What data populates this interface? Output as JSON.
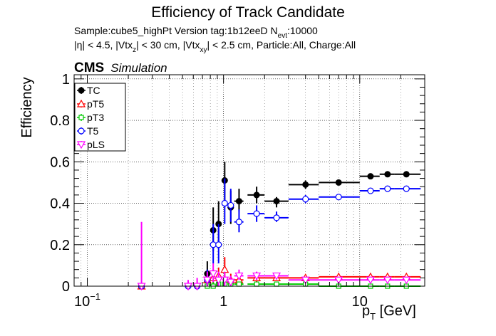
{
  "chart_data": {
    "type": "scatter",
    "title": "Efficiency of Track Candidate",
    "subtitle_line1_parts": [
      "Sample:cube5_highPt   Version tag:1b12eeD  N",
      "evt",
      ":10000"
    ],
    "subtitle_line2_parts": [
      "|η| < 4.5, |Vtx",
      "z",
      "| < 30 cm, |Vtx",
      "xy",
      "| < 2.5 cm, Particle:All, Charge:All"
    ],
    "cms_label": "CMS",
    "cms_sub_label": "Simulation",
    "ylabel": "Efficiency",
    "xlabel_main": "p",
    "xlabel_sub": "T",
    "xlabel_unit": " [GeV]",
    "xscale": "log",
    "xlim": [
      0.08,
      30
    ],
    "ylim": [
      0,
      1.02
    ],
    "grid": true,
    "legend_position": "top-left",
    "x_ticks": [
      {
        "value": 0.1,
        "base": "10",
        "exp": "−1"
      },
      {
        "value": 1,
        "base": "1",
        "exp": ""
      },
      {
        "value": 10,
        "base": "10",
        "exp": ""
      }
    ],
    "y_ticks": [
      {
        "value": 0,
        "label": "0"
      },
      {
        "value": 0.2,
        "label": "0.2"
      },
      {
        "value": 0.4,
        "label": "0.4"
      },
      {
        "value": 0.6,
        "label": "0.6"
      },
      {
        "value": 0.8,
        "label": "0.8"
      },
      {
        "value": 1,
        "label": "1"
      }
    ],
    "series": [
      {
        "name": "TC",
        "color": "#000000",
        "marker": "filled-circle",
        "points": [
          {
            "x": 0.25,
            "xlo": 0.25,
            "xhi": 0.25,
            "y": 0.0,
            "ylo": 0.0,
            "yhi": 0.0
          },
          {
            "x": 0.55,
            "xlo": 0.55,
            "xhi": 0.55,
            "y": 0.0,
            "ylo": 0.0,
            "yhi": 0.0
          },
          {
            "x": 0.64,
            "xlo": 0.64,
            "xhi": 0.64,
            "y": 0.0,
            "ylo": 0.0,
            "yhi": 0.0
          },
          {
            "x": 0.76,
            "xlo": 0.73,
            "xhi": 0.79,
            "y": 0.06,
            "ylo": 0.02,
            "yhi": 0.12
          },
          {
            "x": 0.84,
            "xlo": 0.81,
            "xhi": 0.87,
            "y": 0.27,
            "ylo": 0.17,
            "yhi": 0.38
          },
          {
            "x": 0.92,
            "xlo": 0.89,
            "xhi": 0.95,
            "y": 0.3,
            "ylo": 0.2,
            "yhi": 0.41
          },
          {
            "x": 1.02,
            "xlo": 0.98,
            "xhi": 1.06,
            "y": 0.51,
            "ylo": 0.41,
            "yhi": 0.6
          },
          {
            "x": 1.13,
            "xlo": 1.07,
            "xhi": 1.19,
            "y": 0.38,
            "ylo": 0.3,
            "yhi": 0.46
          },
          {
            "x": 1.3,
            "xlo": 1.2,
            "xhi": 1.4,
            "y": 0.41,
            "ylo": 0.36,
            "yhi": 0.47
          },
          {
            "x": 1.75,
            "xlo": 1.5,
            "xhi": 2.0,
            "y": 0.44,
            "ylo": 0.4,
            "yhi": 0.48
          },
          {
            "x": 2.45,
            "xlo": 2.0,
            "xhi": 3.0,
            "y": 0.41,
            "ylo": 0.38,
            "yhi": 0.43
          },
          {
            "x": 4.0,
            "xlo": 3.0,
            "xhi": 5.0,
            "y": 0.49,
            "ylo": 0.47,
            "yhi": 0.51
          },
          {
            "x": 7.0,
            "xlo": 5.0,
            "xhi": 10.0,
            "y": 0.5,
            "ylo": 0.49,
            "yhi": 0.51
          },
          {
            "x": 12.0,
            "xlo": 10.0,
            "xhi": 14.0,
            "y": 0.53,
            "ylo": 0.52,
            "yhi": 0.54
          },
          {
            "x": 16.0,
            "xlo": 14.0,
            "xhi": 18.0,
            "y": 0.54,
            "ylo": 0.53,
            "yhi": 0.55
          },
          {
            "x": 22.0,
            "xlo": 18.0,
            "xhi": 28.0,
            "y": 0.54,
            "ylo": 0.53,
            "yhi": 0.55
          }
        ]
      },
      {
        "name": "pT5",
        "color": "#ff0000",
        "marker": "open-triangle",
        "points": [
          {
            "x": 0.25,
            "xlo": 0.25,
            "xhi": 0.25,
            "y": 0.0,
            "ylo": 0.0,
            "yhi": 0.0
          },
          {
            "x": 0.76,
            "xlo": 0.73,
            "xhi": 0.79,
            "y": 0.03,
            "ylo": 0.0,
            "yhi": 0.07
          },
          {
            "x": 0.84,
            "xlo": 0.81,
            "xhi": 0.87,
            "y": 0.04,
            "ylo": 0.0,
            "yhi": 0.08
          },
          {
            "x": 0.92,
            "xlo": 0.89,
            "xhi": 0.95,
            "y": 0.05,
            "ylo": 0.01,
            "yhi": 0.09
          },
          {
            "x": 1.02,
            "xlo": 0.98,
            "xhi": 1.06,
            "y": 0.08,
            "ylo": 0.03,
            "yhi": 0.14
          },
          {
            "x": 1.13,
            "xlo": 1.07,
            "xhi": 1.19,
            "y": 0.03,
            "ylo": 0.0,
            "yhi": 0.06
          },
          {
            "x": 1.3,
            "xlo": 1.2,
            "xhi": 1.4,
            "y": 0.03,
            "ylo": 0.01,
            "yhi": 0.05
          },
          {
            "x": 1.75,
            "xlo": 1.5,
            "xhi": 2.0,
            "y": 0.04,
            "ylo": 0.02,
            "yhi": 0.06
          },
          {
            "x": 2.45,
            "xlo": 2.0,
            "xhi": 3.0,
            "y": 0.04,
            "ylo": 0.03,
            "yhi": 0.05
          },
          {
            "x": 4.0,
            "xlo": 3.0,
            "xhi": 5.0,
            "y": 0.04,
            "ylo": 0.03,
            "yhi": 0.05
          },
          {
            "x": 7.0,
            "xlo": 5.0,
            "xhi": 10.0,
            "y": 0.045,
            "ylo": 0.04,
            "yhi": 0.05
          },
          {
            "x": 12.0,
            "xlo": 10.0,
            "xhi": 14.0,
            "y": 0.045,
            "ylo": 0.04,
            "yhi": 0.05
          },
          {
            "x": 16.0,
            "xlo": 14.0,
            "xhi": 18.0,
            "y": 0.045,
            "ylo": 0.04,
            "yhi": 0.05
          },
          {
            "x": 22.0,
            "xlo": 18.0,
            "xhi": 28.0,
            "y": 0.045,
            "ylo": 0.04,
            "yhi": 0.05
          }
        ]
      },
      {
        "name": "pT3",
        "color": "#00cc00",
        "marker": "open-square",
        "points": [
          {
            "x": 0.25,
            "xlo": 0.25,
            "xhi": 0.25,
            "y": 0.0,
            "ylo": 0.0,
            "yhi": 0.0
          },
          {
            "x": 0.76,
            "xlo": 0.73,
            "xhi": 0.79,
            "y": 0.0,
            "ylo": 0.0,
            "yhi": 0.02
          },
          {
            "x": 0.84,
            "xlo": 0.81,
            "xhi": 0.87,
            "y": 0.0,
            "ylo": 0.0,
            "yhi": 0.02
          },
          {
            "x": 0.92,
            "xlo": 0.89,
            "xhi": 0.95,
            "y": 0.01,
            "ylo": 0.0,
            "yhi": 0.03
          },
          {
            "x": 1.02,
            "xlo": 0.98,
            "xhi": 1.06,
            "y": 0.01,
            "ylo": 0.0,
            "yhi": 0.03
          },
          {
            "x": 1.13,
            "xlo": 1.07,
            "xhi": 1.19,
            "y": 0.01,
            "ylo": 0.0,
            "yhi": 0.03
          },
          {
            "x": 1.3,
            "xlo": 1.2,
            "xhi": 1.4,
            "y": 0.01,
            "ylo": 0.0,
            "yhi": 0.02
          },
          {
            "x": 1.75,
            "xlo": 1.5,
            "xhi": 2.0,
            "y": 0.01,
            "ylo": 0.0,
            "yhi": 0.02
          },
          {
            "x": 2.45,
            "xlo": 2.0,
            "xhi": 3.0,
            "y": 0.01,
            "ylo": 0.0,
            "yhi": 0.02
          },
          {
            "x": 4.0,
            "xlo": 3.0,
            "xhi": 5.0,
            "y": 0.01,
            "ylo": 0.0,
            "yhi": 0.02
          },
          {
            "x": 7.0,
            "xlo": 5.0,
            "xhi": 10.0,
            "y": 0.0,
            "ylo": 0.0,
            "yhi": 0.01
          },
          {
            "x": 12.0,
            "xlo": 10.0,
            "xhi": 14.0,
            "y": 0.0,
            "ylo": 0.0,
            "yhi": 0.01
          },
          {
            "x": 16.0,
            "xlo": 14.0,
            "xhi": 18.0,
            "y": 0.0,
            "ylo": 0.0,
            "yhi": 0.01
          },
          {
            "x": 22.0,
            "xlo": 18.0,
            "xhi": 28.0,
            "y": 0.0,
            "ylo": 0.0,
            "yhi": 0.01
          }
        ]
      },
      {
        "name": "T5",
        "color": "#0000ff",
        "marker": "open-circle",
        "points": [
          {
            "x": 0.25,
            "xlo": 0.25,
            "xhi": 0.25,
            "y": 0.0,
            "ylo": 0.0,
            "yhi": 0.0
          },
          {
            "x": 0.55,
            "xlo": 0.55,
            "xhi": 0.55,
            "y": 0.0,
            "ylo": 0.0,
            "yhi": 0.0
          },
          {
            "x": 0.64,
            "xlo": 0.64,
            "xhi": 0.64,
            "y": 0.0,
            "ylo": 0.0,
            "yhi": 0.0
          },
          {
            "x": 0.76,
            "xlo": 0.73,
            "xhi": 0.79,
            "y": 0.03,
            "ylo": 0.0,
            "yhi": 0.08
          },
          {
            "x": 0.84,
            "xlo": 0.81,
            "xhi": 0.87,
            "y": 0.2,
            "ylo": 0.11,
            "yhi": 0.3
          },
          {
            "x": 0.92,
            "xlo": 0.89,
            "xhi": 0.95,
            "y": 0.2,
            "ylo": 0.11,
            "yhi": 0.3
          },
          {
            "x": 1.02,
            "xlo": 0.98,
            "xhi": 1.06,
            "y": 0.4,
            "ylo": 0.3,
            "yhi": 0.52
          },
          {
            "x": 1.13,
            "xlo": 1.07,
            "xhi": 1.19,
            "y": 0.39,
            "ylo": 0.31,
            "yhi": 0.47
          },
          {
            "x": 1.3,
            "xlo": 1.2,
            "xhi": 1.4,
            "y": 0.31,
            "ylo": 0.26,
            "yhi": 0.37
          },
          {
            "x": 1.75,
            "xlo": 1.5,
            "xhi": 2.0,
            "y": 0.35,
            "ylo": 0.31,
            "yhi": 0.39
          },
          {
            "x": 2.45,
            "xlo": 2.0,
            "xhi": 3.0,
            "y": 0.33,
            "ylo": 0.31,
            "yhi": 0.36
          },
          {
            "x": 4.0,
            "xlo": 3.0,
            "xhi": 5.0,
            "y": 0.42,
            "ylo": 0.4,
            "yhi": 0.44
          },
          {
            "x": 7.0,
            "xlo": 5.0,
            "xhi": 10.0,
            "y": 0.43,
            "ylo": 0.42,
            "yhi": 0.44
          },
          {
            "x": 12.0,
            "xlo": 10.0,
            "xhi": 14.0,
            "y": 0.46,
            "ylo": 0.45,
            "yhi": 0.47
          },
          {
            "x": 16.0,
            "xlo": 14.0,
            "xhi": 18.0,
            "y": 0.47,
            "ylo": 0.46,
            "yhi": 0.48
          },
          {
            "x": 22.0,
            "xlo": 18.0,
            "xhi": 28.0,
            "y": 0.47,
            "ylo": 0.46,
            "yhi": 0.48
          }
        ]
      },
      {
        "name": "pLS",
        "color": "#ff00ff",
        "marker": "open-triangle-down",
        "points": [
          {
            "x": 0.25,
            "xlo": 0.25,
            "xhi": 0.25,
            "y": 0.0,
            "ylo": 0.0,
            "yhi": 0.31
          },
          {
            "x": 0.55,
            "xlo": 0.55,
            "xhi": 0.55,
            "y": 0.0,
            "ylo": 0.0,
            "yhi": 0.03
          },
          {
            "x": 0.64,
            "xlo": 0.64,
            "xhi": 0.64,
            "y": 0.0,
            "ylo": 0.0,
            "yhi": 0.04
          },
          {
            "x": 0.76,
            "xlo": 0.73,
            "xhi": 0.79,
            "y": 0.03,
            "ylo": 0.0,
            "yhi": 0.07
          },
          {
            "x": 0.84,
            "xlo": 0.81,
            "xhi": 0.87,
            "y": 0.06,
            "ylo": 0.02,
            "yhi": 0.11
          },
          {
            "x": 0.92,
            "xlo": 0.89,
            "xhi": 0.95,
            "y": 0.03,
            "ylo": 0.0,
            "yhi": 0.07
          },
          {
            "x": 1.02,
            "xlo": 0.98,
            "xhi": 1.06,
            "y": 0.03,
            "ylo": 0.0,
            "yhi": 0.07
          },
          {
            "x": 1.13,
            "xlo": 1.07,
            "xhi": 1.19,
            "y": 0.02,
            "ylo": 0.0,
            "yhi": 0.05
          },
          {
            "x": 1.3,
            "xlo": 1.2,
            "xhi": 1.4,
            "y": 0.05,
            "ylo": 0.03,
            "yhi": 0.08
          },
          {
            "x": 1.75,
            "xlo": 1.5,
            "xhi": 2.0,
            "y": 0.05,
            "ylo": 0.03,
            "yhi": 0.07
          },
          {
            "x": 2.45,
            "xlo": 2.0,
            "xhi": 3.0,
            "y": 0.05,
            "ylo": 0.04,
            "yhi": 0.06
          },
          {
            "x": 4.0,
            "xlo": 3.0,
            "xhi": 5.0,
            "y": 0.03,
            "ylo": 0.02,
            "yhi": 0.04
          },
          {
            "x": 7.0,
            "xlo": 5.0,
            "xhi": 10.0,
            "y": 0.03,
            "ylo": 0.025,
            "yhi": 0.035
          },
          {
            "x": 12.0,
            "xlo": 10.0,
            "xhi": 14.0,
            "y": 0.03,
            "ylo": 0.025,
            "yhi": 0.035
          },
          {
            "x": 16.0,
            "xlo": 14.0,
            "xhi": 18.0,
            "y": 0.03,
            "ylo": 0.025,
            "yhi": 0.035
          },
          {
            "x": 22.0,
            "xlo": 18.0,
            "xhi": 28.0,
            "y": 0.03,
            "ylo": 0.025,
            "yhi": 0.035
          }
        ]
      }
    ]
  }
}
